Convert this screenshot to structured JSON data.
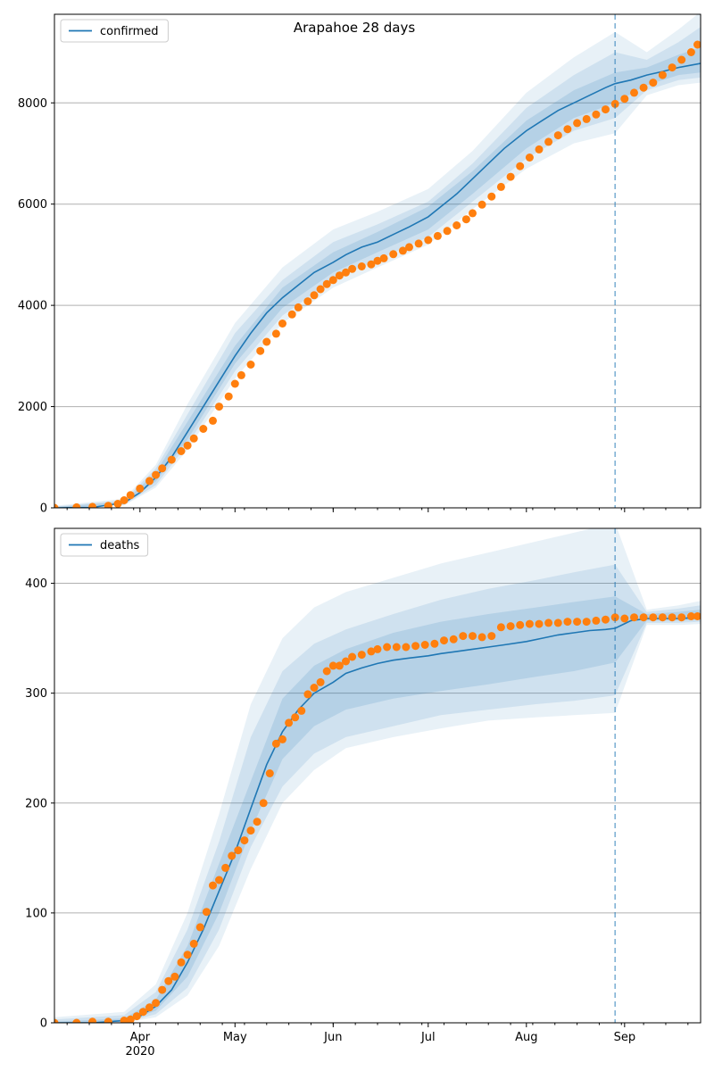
{
  "figure": {
    "title": "Arapahoe 28 days",
    "x_tick_labels": [
      "Apr",
      "May",
      "Jun",
      "Jul",
      "Aug",
      "Sep"
    ],
    "x_year_label": "2020",
    "x_tick_days": [
      75,
      105,
      136,
      166,
      197,
      228
    ],
    "x_range_days": [
      48,
      252
    ],
    "forecast_start_day": 225,
    "colors": {
      "model": "#1f77b4",
      "observed": "#ff7f0e",
      "band": "#1f77b4",
      "grid": "#b0b0b0",
      "axes": "#000000"
    }
  },
  "chart_data": [
    {
      "type": "line",
      "legend": "confirmed",
      "legend_position": "upper left",
      "grid": "horizontal",
      "y_ticks": [
        0,
        2000,
        4000,
        6000,
        8000
      ],
      "ylim": [
        0,
        9750
      ],
      "model": {
        "x": [
          48,
          60,
          70,
          75,
          80,
          85,
          90,
          95,
          100,
          105,
          110,
          115,
          120,
          125,
          130,
          136,
          140,
          145,
          150,
          155,
          160,
          166,
          170,
          175,
          180,
          185,
          190,
          197,
          202,
          207,
          212,
          217,
          222,
          225,
          230,
          235,
          240,
          245,
          252
        ],
        "y": [
          0,
          10,
          100,
          300,
          600,
          1000,
          1500,
          2000,
          2500,
          3000,
          3450,
          3850,
          4150,
          4400,
          4650,
          4850,
          5000,
          5150,
          5250,
          5400,
          5550,
          5750,
          5950,
          6200,
          6500,
          6800,
          7100,
          7450,
          7650,
          7850,
          8000,
          8150,
          8300,
          8380,
          8450,
          8550,
          8620,
          8700,
          8780
        ]
      },
      "observed": {
        "x": [
          48,
          55,
          60,
          65,
          68,
          70,
          72,
          75,
          78,
          80,
          82,
          85,
          88,
          90,
          92,
          95,
          98,
          100,
          103,
          105,
          107,
          110,
          113,
          115,
          118,
          120,
          123,
          125,
          128,
          130,
          132,
          134,
          136,
          138,
          140,
          142,
          145,
          148,
          150,
          152,
          155,
          158,
          160,
          163,
          166,
          169,
          172,
          175,
          178,
          180,
          183,
          186,
          189,
          192,
          195,
          198,
          201,
          204,
          207,
          210,
          213,
          216,
          219,
          222,
          225,
          228,
          231,
          234,
          237,
          240,
          243,
          246,
          249,
          251
        ],
        "y": [
          0,
          10,
          20,
          40,
          80,
          150,
          250,
          380,
          530,
          650,
          780,
          950,
          1120,
          1230,
          1370,
          1560,
          1720,
          2000,
          2200,
          2450,
          2620,
          2830,
          3100,
          3280,
          3440,
          3640,
          3820,
          3960,
          4080,
          4200,
          4320,
          4420,
          4500,
          4590,
          4650,
          4720,
          4770,
          4810,
          4880,
          4930,
          5010,
          5080,
          5150,
          5220,
          5290,
          5370,
          5470,
          5580,
          5700,
          5820,
          5990,
          6150,
          6340,
          6540,
          6750,
          6920,
          7080,
          7230,
          7360,
          7480,
          7600,
          7680,
          7770,
          7870,
          7980,
          8080,
          8200,
          8300,
          8400,
          8550,
          8700,
          8850,
          9000,
          9150
        ]
      },
      "bands": [
        {
          "day": 48,
          "ci95": [
            0,
            40
          ],
          "ci80": [
            0,
            25
          ],
          "ci50": [
            0,
            15
          ]
        },
        {
          "day": 70,
          "ci95": [
            50,
            180
          ],
          "ci80": [
            60,
            150
          ],
          "ci50": [
            80,
            120
          ]
        },
        {
          "day": 80,
          "ci95": [
            400,
            850
          ],
          "ci80": [
            450,
            780
          ],
          "ci50": [
            520,
            700
          ]
        },
        {
          "day": 90,
          "ci95": [
            1150,
            2050
          ],
          "ci80": [
            1250,
            1850
          ],
          "ci50": [
            1350,
            1700
          ]
        },
        {
          "day": 105,
          "ci95": [
            2550,
            3650
          ],
          "ci80": [
            2700,
            3450
          ],
          "ci50": [
            2850,
            3200
          ]
        },
        {
          "day": 120,
          "ci95": [
            3650,
            4750
          ],
          "ci80": [
            3800,
            4500
          ],
          "ci50": [
            3950,
            4350
          ]
        },
        {
          "day": 136,
          "ci95": [
            4350,
            5500
          ],
          "ci80": [
            4500,
            5250
          ],
          "ci50": [
            4650,
            5050
          ]
        },
        {
          "day": 150,
          "ci95": [
            4750,
            5850
          ],
          "ci80": [
            4900,
            5600
          ],
          "ci50": [
            5050,
            5450
          ]
        },
        {
          "day": 166,
          "ci95": [
            5200,
            6300
          ],
          "ci80": [
            5350,
            6050
          ],
          "ci50": [
            5500,
            5950
          ]
        },
        {
          "day": 180,
          "ci95": [
            5900,
            7050
          ],
          "ci80": [
            6050,
            6800
          ],
          "ci50": [
            6200,
            6650
          ]
        },
        {
          "day": 197,
          "ci95": [
            6700,
            8200
          ],
          "ci80": [
            6900,
            7900
          ],
          "ci50": [
            7100,
            7650
          ]
        },
        {
          "day": 212,
          "ci95": [
            7200,
            8900
          ],
          "ci80": [
            7450,
            8550
          ],
          "ci50": [
            7700,
            8250
          ]
        },
        {
          "day": 225,
          "ci95": [
            7400,
            9400
          ],
          "ci80": [
            7700,
            9000
          ],
          "ci50": [
            8000,
            8600
          ]
        },
        {
          "day": 235,
          "ci95": [
            8150,
            9000
          ],
          "ci80": [
            8250,
            8850
          ],
          "ci50": [
            8350,
            8700
          ]
        },
        {
          "day": 245,
          "ci95": [
            8350,
            9450
          ],
          "ci80": [
            8450,
            9200
          ],
          "ci50": [
            8550,
            8950
          ]
        },
        {
          "day": 252,
          "ci95": [
            8400,
            9800
          ],
          "ci80": [
            8500,
            9500
          ],
          "ci50": [
            8600,
            9100
          ]
        }
      ]
    },
    {
      "type": "line",
      "legend": "deaths",
      "legend_position": "upper left",
      "grid": "horizontal",
      "y_ticks": [
        0,
        100,
        200,
        300,
        400
      ],
      "ylim": [
        0,
        450
      ],
      "model": {
        "x": [
          48,
          60,
          70,
          75,
          80,
          85,
          90,
          95,
          100,
          105,
          110,
          115,
          120,
          125,
          130,
          136,
          140,
          145,
          150,
          155,
          160,
          166,
          170,
          175,
          180,
          185,
          190,
          197,
          202,
          207,
          212,
          217,
          222,
          225,
          230,
          235,
          240,
          245,
          252
        ],
        "y": [
          0,
          0,
          2,
          6,
          15,
          30,
          55,
          85,
          120,
          155,
          195,
          235,
          265,
          285,
          300,
          310,
          318,
          323,
          327,
          330,
          332,
          334,
          336,
          338,
          340,
          342,
          344,
          347,
          350,
          353,
          355,
          357,
          358,
          359,
          366,
          368,
          368,
          368,
          369
        ]
      },
      "observed": {
        "x": [
          48,
          55,
          60,
          65,
          70,
          72,
          74,
          76,
          78,
          80,
          82,
          84,
          86,
          88,
          90,
          92,
          94,
          96,
          98,
          100,
          102,
          104,
          106,
          108,
          110,
          112,
          114,
          116,
          118,
          120,
          122,
          124,
          126,
          128,
          130,
          132,
          134,
          136,
          138,
          140,
          142,
          145,
          148,
          150,
          153,
          156,
          159,
          162,
          165,
          168,
          171,
          174,
          177,
          180,
          183,
          186,
          189,
          192,
          195,
          198,
          201,
          204,
          207,
          210,
          213,
          216,
          219,
          222,
          225,
          228,
          231,
          234,
          237,
          240,
          243,
          246,
          249,
          251
        ],
        "y": [
          0,
          0,
          1,
          1,
          2,
          3,
          6,
          10,
          14,
          18,
          30,
          38,
          42,
          55,
          62,
          72,
          87,
          101,
          125,
          130,
          141,
          152,
          157,
          166,
          175,
          183,
          200,
          227,
          254,
          258,
          273,
          278,
          284,
          299,
          305,
          310,
          320,
          325,
          325,
          329,
          333,
          335,
          338,
          340,
          342,
          342,
          342,
          343,
          344,
          345,
          348,
          349,
          352,
          352,
          351,
          352,
          360,
          361,
          362,
          363,
          363,
          364,
          364,
          365,
          365,
          365,
          366,
          367,
          369,
          368,
          369,
          369,
          369,
          369,
          369,
          369,
          370,
          370
        ]
      },
      "bands": [
        {
          "day": 48,
          "ci95": [
            0,
            5
          ],
          "ci80": [
            0,
            3
          ],
          "ci50": [
            0,
            1
          ]
        },
        {
          "day": 70,
          "ci95": [
            0,
            10
          ],
          "ci80": [
            0,
            7
          ],
          "ci50": [
            1,
            4
          ]
        },
        {
          "day": 80,
          "ci95": [
            5,
            35
          ],
          "ci80": [
            8,
            28
          ],
          "ci50": [
            11,
            21
          ]
        },
        {
          "day": 90,
          "ci95": [
            25,
            100
          ],
          "ci80": [
            32,
            85
          ],
          "ci50": [
            42,
            70
          ]
        },
        {
          "day": 100,
          "ci95": [
            70,
            190
          ],
          "ci80": [
            85,
            165
          ],
          "ci50": [
            100,
            145
          ]
        },
        {
          "day": 110,
          "ci95": [
            140,
            290
          ],
          "ci80": [
            160,
            260
          ],
          "ci50": [
            175,
            220
          ]
        },
        {
          "day": 120,
          "ci95": [
            200,
            350
          ],
          "ci80": [
            215,
            320
          ],
          "ci50": [
            240,
            295
          ]
        },
        {
          "day": 130,
          "ci95": [
            230,
            378
          ],
          "ci80": [
            245,
            345
          ],
          "ci50": [
            270,
            325
          ]
        },
        {
          "day": 140,
          "ci95": [
            250,
            392
          ],
          "ci80": [
            260,
            358
          ],
          "ci50": [
            285,
            340
          ]
        },
        {
          "day": 155,
          "ci95": [
            260,
            405
          ],
          "ci80": [
            270,
            372
          ],
          "ci50": [
            295,
            355
          ]
        },
        {
          "day": 170,
          "ci95": [
            268,
            418
          ],
          "ci80": [
            280,
            385
          ],
          "ci50": [
            302,
            365
          ]
        },
        {
          "day": 185,
          "ci95": [
            275,
            428
          ],
          "ci80": [
            285,
            395
          ],
          "ci50": [
            308,
            372
          ]
        },
        {
          "day": 200,
          "ci95": [
            278,
            438
          ],
          "ci80": [
            290,
            403
          ],
          "ci50": [
            315,
            378
          ]
        },
        {
          "day": 212,
          "ci95": [
            280,
            446
          ],
          "ci80": [
            293,
            410
          ],
          "ci50": [
            320,
            383
          ]
        },
        {
          "day": 225,
          "ci95": [
            282,
            455
          ],
          "ci80": [
            298,
            417
          ],
          "ci50": [
            328,
            388
          ]
        },
        {
          "day": 235,
          "ci95": [
            362,
            376
          ],
          "ci80": [
            364,
            374
          ],
          "ci50": [
            366,
            372
          ]
        },
        {
          "day": 245,
          "ci95": [
            362,
            380
          ],
          "ci80": [
            364,
            377
          ],
          "ci50": [
            366,
            374
          ]
        },
        {
          "day": 252,
          "ci95": [
            363,
            384
          ],
          "ci80": [
            365,
            380
          ],
          "ci50": [
            367,
            376
          ]
        }
      ]
    }
  ]
}
